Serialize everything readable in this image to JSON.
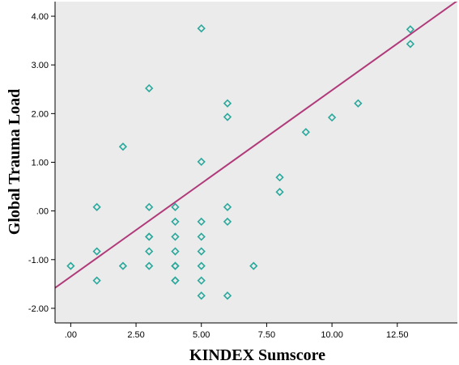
{
  "chart_data": {
    "type": "scatter",
    "title": "",
    "xlabel": "KINDEX Sumscore",
    "ylabel": "Global Trauma Load",
    "xlim": [
      -0.6,
      14.8
    ],
    "ylim": [
      -2.3,
      4.3
    ],
    "x_ticks": [
      0,
      2.5,
      5,
      7.5,
      10,
      12.5
    ],
    "x_tick_labels": [
      ".00",
      "2.50",
      "5.00",
      "7.50",
      "10.00",
      "12.50"
    ],
    "y_ticks": [
      -2,
      -1,
      0,
      1,
      2,
      3,
      4
    ],
    "y_tick_labels": [
      "-2.00",
      "-1.00",
      ".00",
      "1.00",
      "2.00",
      "3.00",
      "4.00"
    ],
    "grid": false,
    "legend": "none",
    "colors": {
      "plot_background": "#ebebeb",
      "marker": "#29a89c",
      "fit_line": "#b03a7a",
      "axis": "#000000"
    },
    "marker_shape": "diamond",
    "points": [
      {
        "x": 0,
        "y": -1.13
      },
      {
        "x": 1,
        "y": 0.08
      },
      {
        "x": 1,
        "y": -0.83
      },
      {
        "x": 1,
        "y": -1.43
      },
      {
        "x": 2,
        "y": 1.32
      },
      {
        "x": 2,
        "y": -1.13
      },
      {
        "x": 3,
        "y": 2.52
      },
      {
        "x": 3,
        "y": 0.08
      },
      {
        "x": 3,
        "y": -0.53
      },
      {
        "x": 3,
        "y": -0.53
      },
      {
        "x": 3,
        "y": -0.83
      },
      {
        "x": 3,
        "y": -1.13
      },
      {
        "x": 4,
        "y": 0.08
      },
      {
        "x": 4,
        "y": -0.22
      },
      {
        "x": 4,
        "y": -0.53
      },
      {
        "x": 4,
        "y": -0.83
      },
      {
        "x": 4,
        "y": -1.13
      },
      {
        "x": 4,
        "y": -1.13
      },
      {
        "x": 4,
        "y": -1.43
      },
      {
        "x": 4,
        "y": -1.43
      },
      {
        "x": 5,
        "y": 3.75
      },
      {
        "x": 5,
        "y": 1.01
      },
      {
        "x": 5,
        "y": -0.22
      },
      {
        "x": 5,
        "y": -0.53
      },
      {
        "x": 5,
        "y": -0.83
      },
      {
        "x": 5,
        "y": -1.13
      },
      {
        "x": 5,
        "y": -1.43
      },
      {
        "x": 5,
        "y": -1.74
      },
      {
        "x": 6,
        "y": 2.21
      },
      {
        "x": 6,
        "y": 1.93
      },
      {
        "x": 6,
        "y": 0.08
      },
      {
        "x": 6,
        "y": -0.22
      },
      {
        "x": 6,
        "y": -1.74
      },
      {
        "x": 7,
        "y": -1.13
      },
      {
        "x": 8,
        "y": 0.69
      },
      {
        "x": 8,
        "y": 0.39
      },
      {
        "x": 9,
        "y": 1.62
      },
      {
        "x": 10,
        "y": 1.92
      },
      {
        "x": 11,
        "y": 2.21
      },
      {
        "x": 13,
        "y": 3.73
      },
      {
        "x": 13,
        "y": 3.43
      }
    ],
    "fit_line": {
      "intercept": -1.35,
      "slope": 0.383
    }
  }
}
